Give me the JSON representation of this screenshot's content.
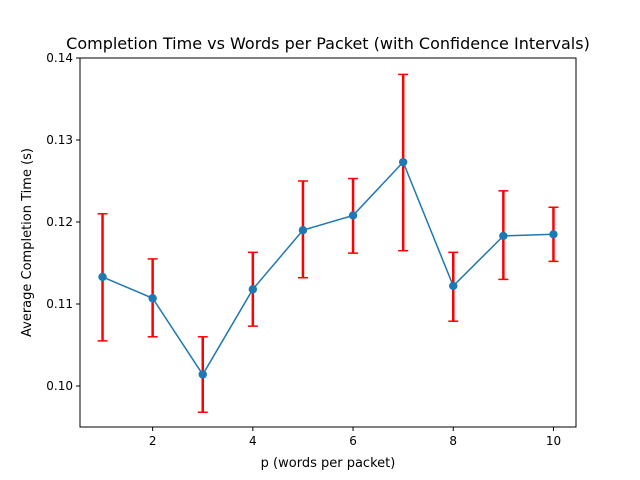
{
  "chart_data": {
    "type": "line",
    "title": "Completion Time vs Words per Packet (with Confidence Intervals)",
    "xlabel": "p (words per packet)",
    "ylabel": "Average Completion Time (s)",
    "xlim": [
      0.55,
      10.45
    ],
    "ylim": [
      0.095,
      0.14
    ],
    "xticks": [
      2,
      4,
      6,
      8,
      10
    ],
    "xtick_labels": [
      "2",
      "4",
      "6",
      "8",
      "10"
    ],
    "yticks": [
      0.1,
      0.11,
      0.12,
      0.13,
      0.14
    ],
    "ytick_labels": [
      "0.10",
      "0.11",
      "0.12",
      "0.13",
      "0.14"
    ],
    "grid": false,
    "legend": "none",
    "line_color": "#1f77b4",
    "errorbar_color": "#ff0000",
    "series": [
      {
        "x": [
          1,
          2,
          3,
          4,
          5,
          6,
          7,
          8,
          9,
          10
        ],
        "values": [
          0.1133,
          0.1107,
          0.1014,
          0.1118,
          0.119,
          0.1208,
          0.1273,
          0.1122,
          0.1183,
          0.1185
        ],
        "lower": [
          0.1055,
          0.106,
          0.0968,
          0.1073,
          0.1132,
          0.1162,
          0.1165,
          0.1079,
          0.113,
          0.1152
        ],
        "upper": [
          0.121,
          0.1155,
          0.106,
          0.1163,
          0.125,
          0.1253,
          0.138,
          0.1163,
          0.1238,
          0.1218
        ]
      }
    ]
  }
}
